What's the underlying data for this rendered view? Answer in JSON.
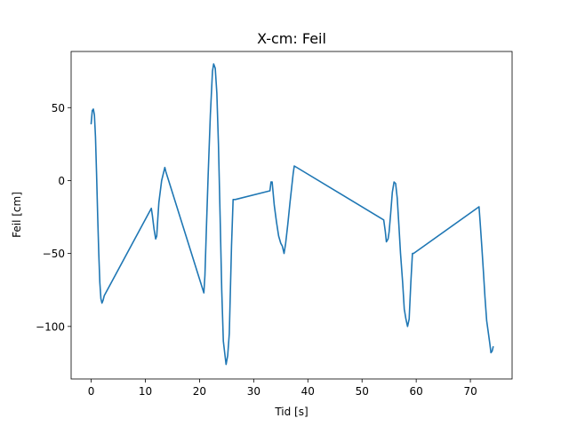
{
  "chart_data": {
    "type": "line",
    "title": "X-cm: Feil",
    "xlabel": "Tid [s]",
    "ylabel": "Feil [cm]",
    "xlim": [
      -3.7,
      77.7
    ],
    "ylim": [
      -136,
      88.5
    ],
    "xticks": [
      0,
      10,
      20,
      30,
      40,
      50,
      60,
      70
    ],
    "yticks": [
      50,
      0,
      -50,
      -100
    ],
    "ytick_labels": [
      "50",
      "0",
      "−50",
      "−100"
    ],
    "grid": false,
    "colors": {
      "series": "#1f77b4"
    },
    "series": [
      {
        "x": [
          0.0,
          0.2,
          0.4,
          0.6,
          0.8,
          1.0,
          1.2,
          1.4,
          1.6,
          1.8,
          2.0,
          2.2,
          2.4,
          11.1,
          11.3,
          11.6,
          11.9,
          12.1,
          12.3,
          12.5,
          13.0,
          13.6,
          13.8,
          20.8,
          21.0,
          21.3,
          21.6,
          22.0,
          22.4,
          22.6,
          22.9,
          23.2,
          23.5,
          23.8,
          24.1,
          24.4,
          24.7,
          24.9,
          25.2,
          25.5,
          25.9,
          26.2,
          26.6,
          33.0,
          33.2,
          33.4,
          33.5,
          33.8,
          34.2,
          34.6,
          35.0,
          35.3,
          35.6,
          35.9,
          36.3,
          36.7,
          37.0,
          37.3,
          37.5,
          54.0,
          54.3,
          54.5,
          54.8,
          55.0,
          55.3,
          55.6,
          55.9,
          56.2,
          56.5,
          56.8,
          57.1,
          57.5,
          57.8,
          58.1,
          58.4,
          58.7,
          59.0,
          59.3,
          59.5,
          71.6,
          71.8,
          72.1,
          72.4,
          72.7,
          73.0,
          73.3,
          73.6,
          73.8,
          74.0,
          74.2
        ],
        "y": [
          39,
          48,
          49,
          45,
          30,
          5,
          -25,
          -50,
          -70,
          -81,
          -84,
          -82,
          -79,
          -19,
          -24,
          -33,
          -40,
          -38,
          -26,
          -15,
          0,
          9,
          6,
          -77,
          -65,
          -30,
          5,
          45,
          75,
          80,
          77,
          60,
          25,
          -25,
          -75,
          -110,
          -120,
          -126,
          -120,
          -105,
          -45,
          -13,
          -13,
          -7,
          -1,
          -1,
          -5,
          -17,
          -28,
          -38,
          -43,
          -45,
          -50,
          -43,
          -30,
          -15,
          -5,
          5,
          10,
          -27,
          -35,
          -42,
          -40,
          -35,
          -22,
          -8,
          -1,
          -2,
          -12,
          -30,
          -50,
          -70,
          -88,
          -95,
          -100,
          -95,
          -70,
          -50,
          -50,
          -18,
          -28,
          -45,
          -62,
          -80,
          -96,
          -104,
          -112,
          -118,
          -117,
          -114
        ]
      }
    ]
  }
}
